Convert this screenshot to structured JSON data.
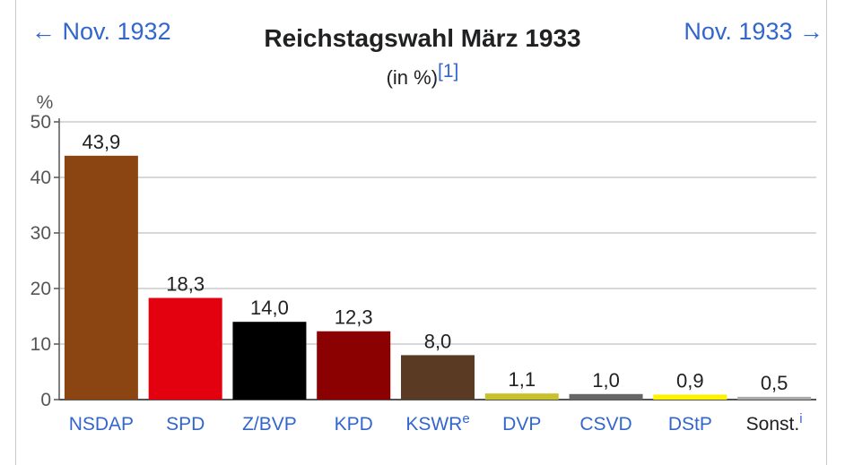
{
  "nav": {
    "prev": "← Nov. 1932",
    "next": "Nov. 1933 →"
  },
  "title": "Reichstagswahl März 1933",
  "subtitle": "(in %)",
  "subtitle_ref": "[1]",
  "chart_data": {
    "type": "bar",
    "title": "Reichstagswahl März 1933",
    "subtitle": "(in %)",
    "ylabel": "%",
    "ylim": [
      0,
      50
    ],
    "yticks": [
      0,
      10,
      20,
      30,
      40,
      50
    ],
    "grid": true,
    "categories": [
      "NSDAP",
      "SPD",
      "Z/BVP",
      "KPD",
      "KSWR",
      "DVP",
      "CSVD",
      "DStP",
      "Sonst."
    ],
    "category_superscripts": [
      "",
      "",
      "",
      "",
      "e",
      "",
      "",
      "",
      "i"
    ],
    "category_linked": [
      true,
      true,
      true,
      true,
      true,
      true,
      true,
      true,
      false
    ],
    "values": [
      43.9,
      18.3,
      14.0,
      12.3,
      8.0,
      1.1,
      1.0,
      0.9,
      0.5
    ],
    "value_labels": [
      "43,9",
      "18,3",
      "14,0",
      "12,3",
      "8,0",
      "1,1",
      "1,0",
      "0,9",
      "0,5"
    ],
    "colors": [
      "#8b4513",
      "#e3000f",
      "#000000",
      "#8b0000",
      "#5a3a22",
      "#c7c22b",
      "#666666",
      "#fff200",
      "#aaaaaa"
    ],
    "axis_color": "#555555",
    "grid_color": "#cccccc",
    "link_color": "#3366cc"
  }
}
